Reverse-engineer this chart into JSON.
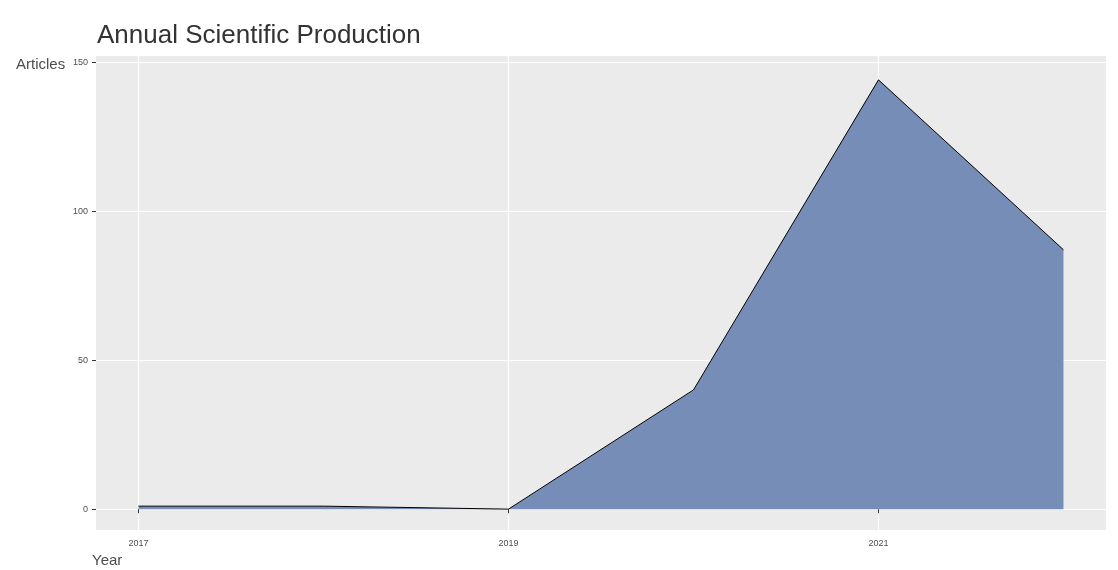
{
  "chart_data": {
    "type": "area",
    "title": "Annual Scientific Production",
    "xlabel": "Year",
    "ylabel": "Articles",
    "x": [
      2017,
      2018,
      2019,
      2020,
      2021,
      2022
    ],
    "series": [
      {
        "color": "#768db7",
        "values": [
          1,
          1,
          0,
          40,
          144,
          87
        ]
      }
    ],
    "xlim": [
      2016.77,
      2022.23
    ],
    "xticks": [
      2017,
      2019,
      2021
    ],
    "ylim": [
      -7,
      152
    ],
    "yticks": [
      0,
      50,
      100,
      150
    ],
    "grid": true,
    "marker": "none",
    "line_style": "solid"
  }
}
